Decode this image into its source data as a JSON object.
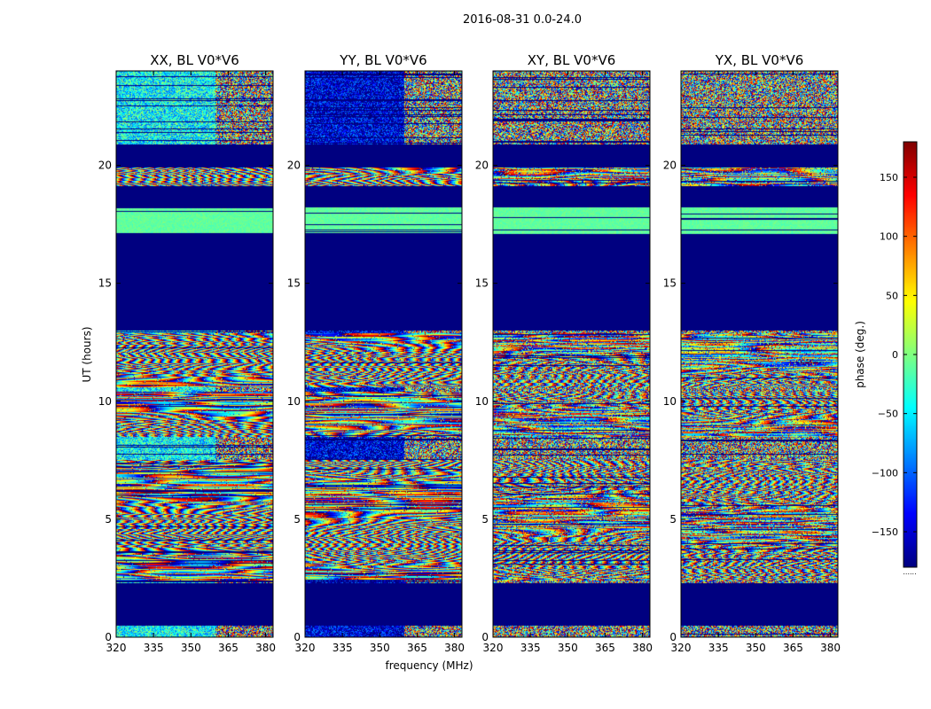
{
  "chart_data": {
    "type": "heatmap",
    "title": "2016-08-31 0.0-24.0",
    "xlabel": "frequency (MHz)",
    "ylabel": "UT (hours)",
    "colorbar_label": "phase (deg.)",
    "colormap": "jet",
    "xlim": [
      320,
      383
    ],
    "ylim": [
      0,
      24
    ],
    "clim": [
      -180,
      180
    ],
    "x_ticks": [
      320,
      335,
      350,
      365,
      380
    ],
    "x_tick_labels": [
      "320",
      "335",
      "350",
      "365",
      "380"
    ],
    "y_ticks": [
      0,
      5,
      10,
      15,
      20
    ],
    "y_tick_labels": [
      "0",
      "5",
      "10",
      "15",
      "20"
    ],
    "colorbar_ticks": [
      150,
      100,
      50,
      0,
      -50,
      -100,
      -150
    ],
    "colorbar_tick_labels": [
      "150",
      "100",
      "50",
      "0",
      "−50",
      "−100",
      "−150"
    ],
    "colorbar_offset_text": "......",
    "flagged_ut_ranges": [
      [
        0.5,
        2.3
      ],
      [
        13.0,
        17.1
      ],
      [
        18.2,
        19.1
      ],
      [
        19.9,
        20.9
      ]
    ],
    "uniform_phase_ut_ranges": [
      [
        17.1,
        18.2
      ]
    ],
    "fringe_ut_ranges": [
      [
        2.4,
        7.5
      ],
      [
        8.5,
        10.4
      ],
      [
        10.6,
        12.9
      ],
      [
        19.1,
        19.9
      ]
    ],
    "noisy_ut_ranges": [
      [
        0.0,
        0.5
      ],
      [
        7.5,
        8.5
      ],
      [
        20.9,
        24.0
      ]
    ],
    "panels": [
      {
        "title": "XX, BL V0*V6",
        "low_band_bias_deg": -45,
        "noise": 0.35,
        "seed": 11
      },
      {
        "title": "YY, BL V0*V6",
        "low_band_bias_deg": -150,
        "noise": 0.4,
        "seed": 23
      },
      {
        "title": "XY, BL V0*V6",
        "low_band_bias_deg": 0,
        "noise": 1.0,
        "seed": 37
      },
      {
        "title": "YX, BL V0*V6",
        "low_band_bias_deg": 0,
        "noise": 1.0,
        "seed": 53
      }
    ]
  }
}
